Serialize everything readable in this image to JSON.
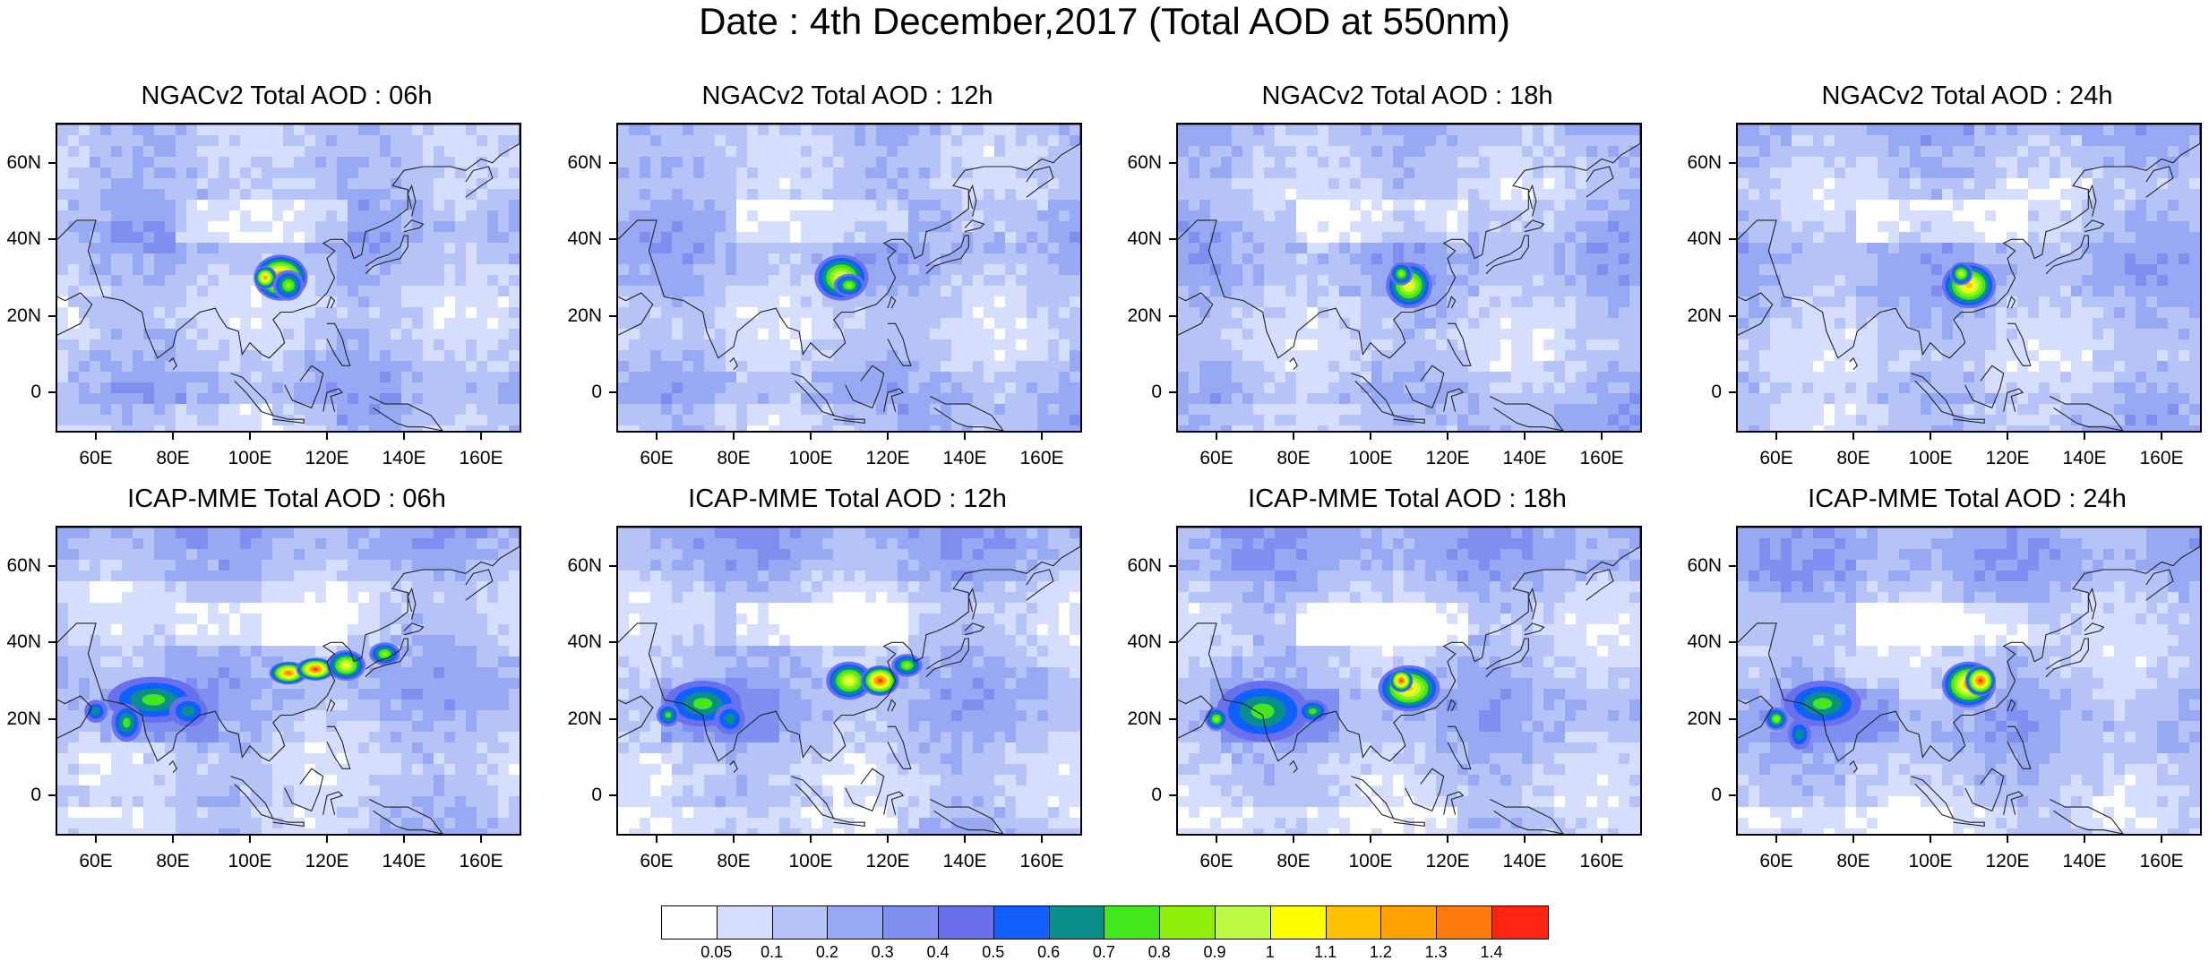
{
  "title": "Date : 4th December,2017 (Total AOD at 550nm)",
  "panels": [
    {
      "title": "NGACv2 Total AOD : 06h"
    },
    {
      "title": "NGACv2 Total AOD : 12h"
    },
    {
      "title": "NGACv2 Total AOD : 18h"
    },
    {
      "title": "NGACv2 Total AOD : 24h"
    },
    {
      "title": "ICAP-MME Total AOD : 06h"
    },
    {
      "title": "ICAP-MME Total AOD : 12h"
    },
    {
      "title": "ICAP-MME Total AOD : 18h"
    },
    {
      "title": "ICAP-MME Total AOD : 24h"
    }
  ],
  "axes": {
    "lat_ticks": [
      "60N",
      "40N",
      "20N",
      "0"
    ],
    "lon_ticks": [
      "60E",
      "80E",
      "100E",
      "120E",
      "140E",
      "160E"
    ],
    "lat_range": [
      -10,
      70
    ],
    "lon_range": [
      50,
      170
    ]
  },
  "colorbar": {
    "colors": [
      "#ffffff",
      "#d5defc",
      "#b6c3f6",
      "#97a9f2",
      "#7f8ff0",
      "#6a70ec",
      "#0f60ff",
      "#0a8f8c",
      "#42e81a",
      "#8ef00b",
      "#bdfc42",
      "#ffff00",
      "#ffc100",
      "#ffa100",
      "#ff7a0a",
      "#ff2412"
    ],
    "labels": [
      "0.05",
      "0.1",
      "0.2",
      "0.3",
      "0.4",
      "0.5",
      "0.6",
      "0.7",
      "0.8",
      "0.9",
      "1",
      "1.1",
      "1.2",
      "1.3",
      "1.4"
    ]
  }
}
